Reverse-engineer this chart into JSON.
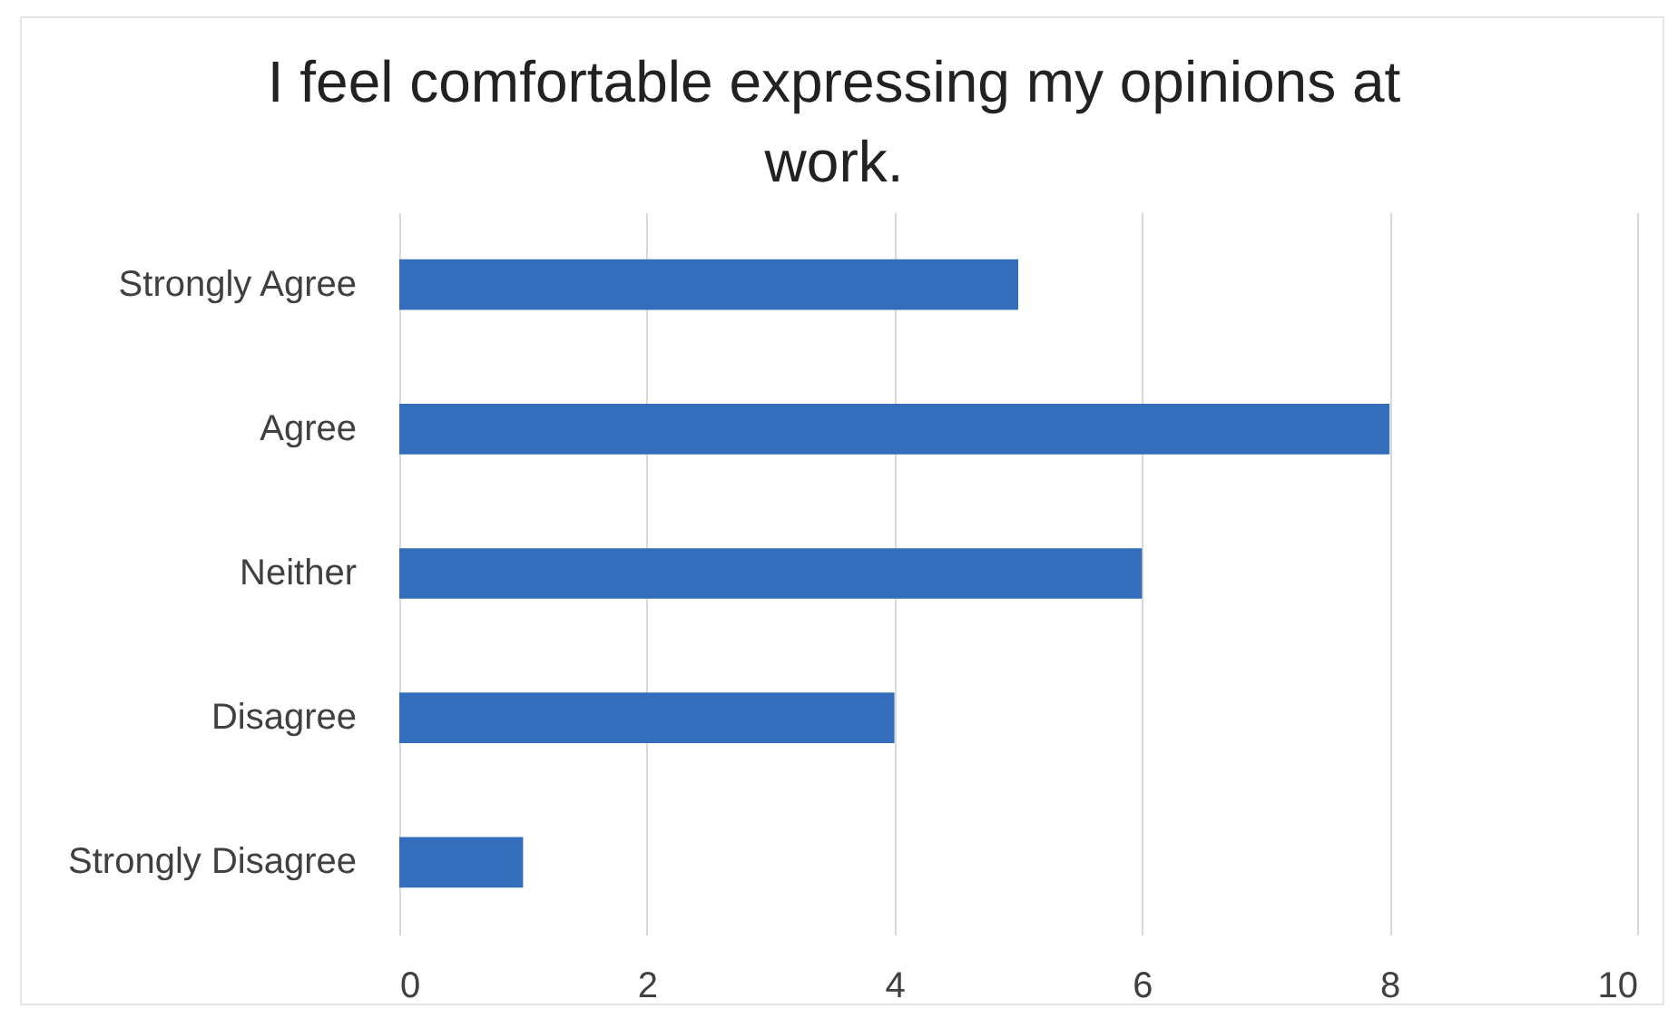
{
  "chart_data": {
    "type": "bar",
    "orientation": "horizontal",
    "title": "I feel comfortable expressing my opinions at work.",
    "categories": [
      "Strongly Agree",
      "Agree",
      "Neither",
      "Disagree",
      "Strongly Disagree"
    ],
    "values": [
      5,
      8,
      6,
      4,
      1
    ],
    "color": "#356dbd",
    "xlim": [
      0,
      10
    ],
    "xticks": [
      0,
      2,
      4,
      6,
      8,
      10
    ],
    "grid": "x"
  }
}
